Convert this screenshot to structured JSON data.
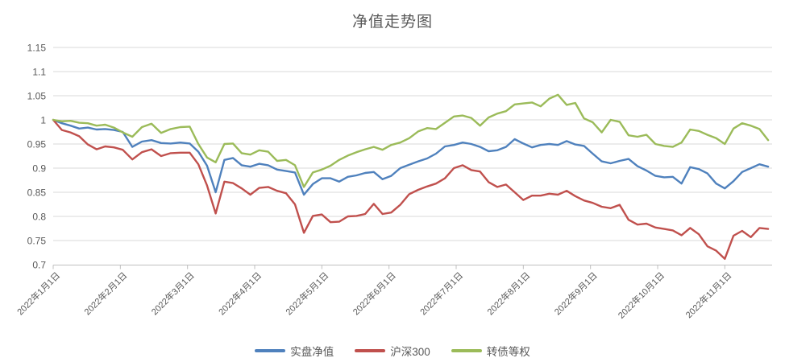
{
  "title": "净值走势图",
  "colors": {
    "background": "#FFFFFF",
    "gridline": "#D9D9D9",
    "axis_line": "#BFBFBF",
    "text": "#595959",
    "series_blue": "#4F81BD",
    "series_red": "#C0504D",
    "series_green": "#9BBB59"
  },
  "chart_data": {
    "type": "line",
    "title": "净值走势图",
    "legend_position": "bottom",
    "grid": "horizontal",
    "x_axis": {
      "tick_days": [
        0,
        31,
        59,
        90,
        120,
        151,
        181,
        212,
        243,
        273,
        304
      ],
      "tick_labels": [
        "2022年1月1日",
        "2022年2月1日",
        "2022年3月1日",
        "2022年4月1日",
        "2022年5月1日",
        "2022年6月1日",
        "2022年7月1日",
        "2022年8月1日",
        "2022年9月1日",
        "2022年10月1日",
        "2022年11月1日"
      ],
      "month_boundaries": [
        0,
        31,
        59,
        90,
        120,
        151,
        181,
        212,
        243,
        273,
        304,
        335
      ],
      "range_days": [
        0,
        324
      ]
    },
    "y_axis": {
      "min": 0.7,
      "max": 1.15,
      "ticks": [
        {
          "v": 1.15,
          "label": "1.15"
        },
        {
          "v": 1.1,
          "label": "1.1"
        },
        {
          "v": 1.05,
          "label": "1.05"
        },
        {
          "v": 1.0,
          "label": "1"
        },
        {
          "v": 0.95,
          "label": "0.95"
        },
        {
          "v": 0.9,
          "label": "0.9"
        },
        {
          "v": 0.85,
          "label": "0.85"
        },
        {
          "v": 0.8,
          "label": "0.8"
        },
        {
          "v": 0.75,
          "label": "0.75"
        },
        {
          "v": 0.7,
          "label": "0.7"
        }
      ]
    },
    "x_days": [
      0,
      4,
      8,
      12,
      16,
      20,
      24,
      28,
      32,
      36,
      40,
      44,
      48,
      52,
      56,
      60,
      64,
      68,
      72,
      76,
      80,
      84,
      88,
      92,
      96,
      100,
      104,
      108,
      112,
      116,
      120,
      124,
      128,
      132,
      136,
      140,
      144,
      148,
      152,
      156,
      160,
      164,
      168,
      172,
      176,
      180,
      184,
      188,
      192,
      196,
      200,
      204,
      208,
      212,
      216,
      220,
      224,
      228,
      232,
      236,
      240,
      244,
      248,
      252,
      256,
      260,
      264,
      268,
      272,
      276,
      280,
      284,
      288,
      292,
      296,
      300,
      304,
      308,
      312,
      316,
      320,
      324
    ],
    "series": [
      {
        "id": "shipan-jingzhi",
        "name": "实盘净值",
        "color": "#4F81BD",
        "values": [
          1.0,
          0.993,
          0.988,
          0.982,
          0.984,
          0.98,
          0.981,
          0.979,
          0.975,
          0.944,
          0.955,
          0.958,
          0.952,
          0.951,
          0.953,
          0.951,
          0.934,
          0.905,
          0.85,
          0.917,
          0.921,
          0.906,
          0.903,
          0.909,
          0.906,
          0.897,
          0.894,
          0.891,
          0.845,
          0.867,
          0.879,
          0.879,
          0.872,
          0.882,
          0.885,
          0.89,
          0.892,
          0.877,
          0.884,
          0.9,
          0.907,
          0.914,
          0.92,
          0.93,
          0.945,
          0.948,
          0.953,
          0.95,
          0.944,
          0.935,
          0.937,
          0.944,
          0.96,
          0.951,
          0.943,
          0.948,
          0.95,
          0.948,
          0.956,
          0.949,
          0.946,
          0.93,
          0.914,
          0.91,
          0.915,
          0.919,
          0.904,
          0.895,
          0.884,
          0.881,
          0.882,
          0.868,
          0.902,
          0.898,
          0.889,
          0.868,
          0.858,
          0.873,
          0.892,
          0.9,
          0.908,
          0.903
        ]
      },
      {
        "id": "hushen-300",
        "name": "沪深300",
        "color": "#C0504D",
        "values": [
          1.0,
          0.979,
          0.974,
          0.966,
          0.949,
          0.939,
          0.945,
          0.943,
          0.938,
          0.918,
          0.933,
          0.939,
          0.925,
          0.931,
          0.932,
          0.932,
          0.908,
          0.864,
          0.806,
          0.872,
          0.869,
          0.858,
          0.845,
          0.859,
          0.861,
          0.853,
          0.848,
          0.825,
          0.766,
          0.801,
          0.804,
          0.788,
          0.789,
          0.8,
          0.801,
          0.805,
          0.826,
          0.805,
          0.808,
          0.824,
          0.846,
          0.855,
          0.862,
          0.868,
          0.879,
          0.9,
          0.906,
          0.896,
          0.893,
          0.871,
          0.861,
          0.866,
          0.85,
          0.834,
          0.843,
          0.843,
          0.847,
          0.845,
          0.853,
          0.842,
          0.833,
          0.828,
          0.82,
          0.817,
          0.824,
          0.793,
          0.783,
          0.785,
          0.777,
          0.774,
          0.771,
          0.761,
          0.776,
          0.763,
          0.738,
          0.729,
          0.712,
          0.76,
          0.77,
          0.757,
          0.776,
          0.774
        ]
      },
      {
        "id": "zhuanzhai-dengquan",
        "name": "转债等权",
        "color": "#9BBB59",
        "values": [
          1.0,
          0.997,
          0.998,
          0.994,
          0.993,
          0.988,
          0.99,
          0.984,
          0.974,
          0.965,
          0.985,
          0.992,
          0.973,
          0.981,
          0.985,
          0.986,
          0.95,
          0.922,
          0.912,
          0.95,
          0.951,
          0.931,
          0.928,
          0.937,
          0.934,
          0.915,
          0.917,
          0.906,
          0.861,
          0.891,
          0.897,
          0.905,
          0.917,
          0.926,
          0.933,
          0.939,
          0.944,
          0.938,
          0.948,
          0.953,
          0.962,
          0.976,
          0.983,
          0.981,
          0.994,
          1.007,
          1.009,
          1.004,
          0.988,
          1.005,
          1.013,
          1.018,
          1.032,
          1.034,
          1.036,
          1.028,
          1.044,
          1.052,
          1.031,
          1.035,
          1.003,
          0.995,
          0.974,
          1.0,
          0.996,
          0.968,
          0.965,
          0.969,
          0.95,
          0.946,
          0.944,
          0.953,
          0.98,
          0.977,
          0.969,
          0.962,
          0.95,
          0.982,
          0.993,
          0.988,
          0.981,
          0.958
        ]
      }
    ]
  }
}
